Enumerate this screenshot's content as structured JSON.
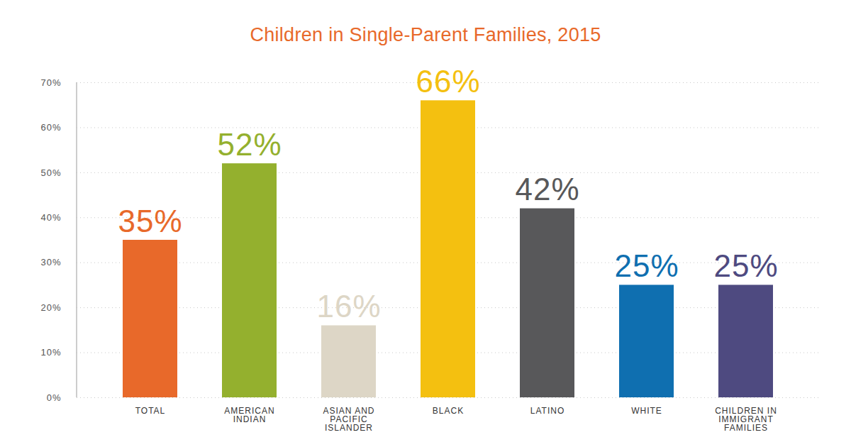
{
  "chart_data": {
    "type": "bar",
    "title": "Children in Single-Parent Families, 2015",
    "categories": [
      "TOTAL",
      "AMERICAN INDIAN",
      "ASIAN AND PACIFIC ISLANDER",
      "BLACK",
      "LATINO",
      "WHITE",
      "CHILDREN IN IMMIGRANT FAMILIES"
    ],
    "values": [
      35,
      52,
      16,
      66,
      42,
      25,
      25
    ],
    "value_labels": [
      "35%",
      "52%",
      "16%",
      "66%",
      "42%",
      "25%",
      "25%"
    ],
    "colors": [
      "#e8692a",
      "#94b02e",
      "#ddd6c6",
      "#f4c010",
      "#58585a",
      "#0f6fb0",
      "#4e4a80"
    ],
    "ylim": [
      0,
      70
    ],
    "yticks": [
      {
        "value": 0,
        "label": "0%"
      },
      {
        "value": 10,
        "label": "10%"
      },
      {
        "value": 20,
        "label": "20%"
      },
      {
        "value": 30,
        "label": "30%"
      },
      {
        "value": 40,
        "label": "40%"
      },
      {
        "value": 50,
        "label": "50%"
      },
      {
        "value": 60,
        "label": "60%"
      },
      {
        "value": 70,
        "label": "70%"
      }
    ],
    "grid": true,
    "data_labels": true
  }
}
